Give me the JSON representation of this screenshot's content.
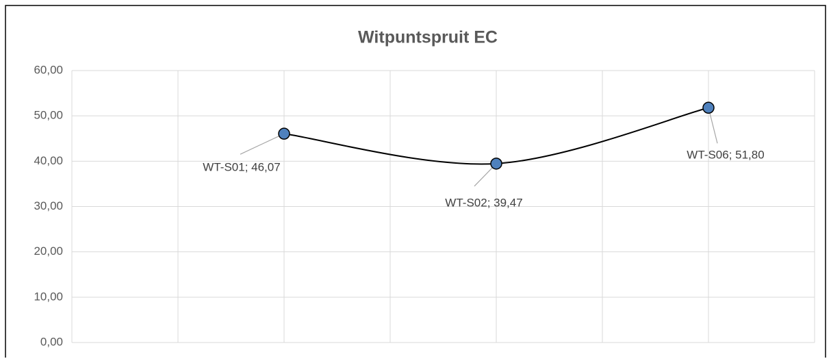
{
  "chart_data": {
    "type": "line",
    "title": "Witpuntspruit EC",
    "values": [
      46.07,
      39.47,
      51.8
    ],
    "value_labels": [
      "WT-S01; 46,07",
      "WT-S02; 39,47",
      "WT-S06; 51,80"
    ],
    "color": "#4f81bd",
    "line_color": "#000000",
    "smooth": true,
    "ylim": [
      0,
      60
    ],
    "yticks": [
      {
        "value": 0,
        "label": "0,00"
      },
      {
        "value": 10,
        "label": "10,00"
      },
      {
        "value": 20,
        "label": "20,00"
      },
      {
        "value": 30,
        "label": "30,00"
      },
      {
        "value": 40,
        "label": "40,00"
      },
      {
        "value": 50,
        "label": "50,00"
      },
      {
        "value": 60,
        "label": "60,00"
      }
    ],
    "grid": true
  }
}
